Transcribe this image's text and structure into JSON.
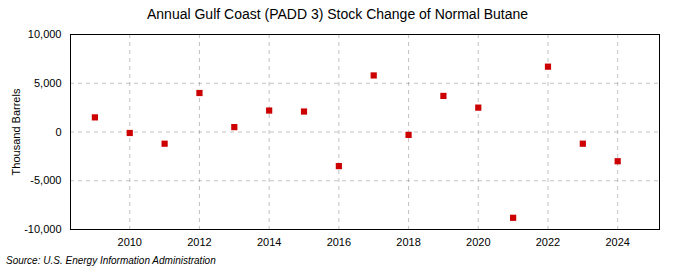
{
  "chart_data": {
    "type": "scatter",
    "title": "Annual Gulf Coast (PADD 3) Stock Change of Normal Butane",
    "ylabel": "Thousand Barrels",
    "source": "Source: U.S. Energy Information Administration",
    "x": [
      2009,
      2010,
      2011,
      2012,
      2013,
      2014,
      2015,
      2016,
      2017,
      2018,
      2019,
      2020,
      2021,
      2022,
      2023,
      2024
    ],
    "values": [
      1500,
      -100,
      -1200,
      4000,
      500,
      2200,
      2100,
      -3500,
      5800,
      -300,
      3700,
      2500,
      -8800,
      6700,
      -1200,
      -3000
    ],
    "color": "#cc0000",
    "marker": "square",
    "xlim": [
      2008.3,
      2025.2
    ],
    "xticks": [
      2010,
      2012,
      2014,
      2016,
      2018,
      2020,
      2022,
      2024
    ],
    "ylim": [
      -10000,
      10000
    ],
    "yticks": [
      {
        "value": -10000,
        "label": "-10,000"
      },
      {
        "value": -5000,
        "label": "-5,000"
      },
      0,
      {
        "value": 5000,
        "label": "5,000"
      },
      {
        "value": 10000,
        "label": "10,000"
      }
    ],
    "grid": true
  }
}
